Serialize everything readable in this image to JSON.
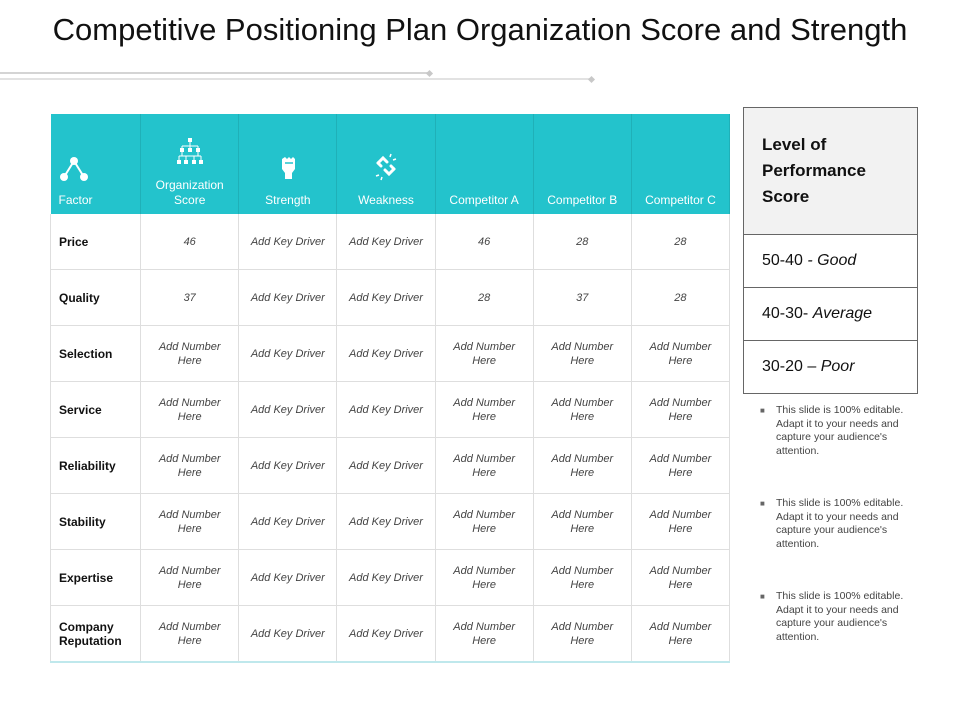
{
  "title": "Competitive Positioning Plan Organization Score and Strength",
  "table": {
    "headers": [
      {
        "label": "Factor",
        "icon": "nodes-icon"
      },
      {
        "label": "Organization Score",
        "icon": "org-chart-icon"
      },
      {
        "label": "Strength",
        "icon": "fist-icon"
      },
      {
        "label": "Weakness",
        "icon": "broken-link-icon"
      },
      {
        "label": "Competitor A",
        "icon": ""
      },
      {
        "label": "Competitor B",
        "icon": ""
      },
      {
        "label": "Competitor C",
        "icon": ""
      }
    ],
    "rows": [
      {
        "factor": "Price",
        "cells": [
          "46",
          "Add Key Driver",
          "Add Key Driver",
          "46",
          "28",
          "28"
        ]
      },
      {
        "factor": "Quality",
        "cells": [
          "37",
          "Add Key Driver",
          "Add Key Driver",
          "28",
          "37",
          "28"
        ]
      },
      {
        "factor": "Selection",
        "cells": [
          "Add Number Here",
          "Add Key Driver",
          "Add Key Driver",
          "Add Number Here",
          "Add Number Here",
          "Add Number Here"
        ]
      },
      {
        "factor": "Service",
        "cells": [
          "Add Number Here",
          "Add Key Driver",
          "Add Key Driver",
          "Add Number Here",
          "Add Number Here",
          "Add Number Here"
        ]
      },
      {
        "factor": "Reliability",
        "cells": [
          "Add Number Here",
          "Add Key Driver",
          "Add Key Driver",
          "Add Number Here",
          "Add Number Here",
          "Add Number Here"
        ]
      },
      {
        "factor": "Stability",
        "cells": [
          "Add Number Here",
          "Add Key Driver",
          "Add Key Driver",
          "Add Number Here",
          "Add Number Here",
          "Add Number Here"
        ]
      },
      {
        "factor": "Expertise",
        "cells": [
          "Add Number Here",
          "Add Key Driver",
          "Add Key Driver",
          "Add Number Here",
          "Add Number Here",
          "Add Number Here"
        ]
      },
      {
        "factor": "Company Reputation",
        "cells": [
          "Add Number Here",
          "Add Key Driver",
          "Add Key Driver",
          "Add Number Here",
          "Add Number Here",
          "Add Number Here"
        ]
      }
    ]
  },
  "performance": {
    "heading": "Level of Performance Score",
    "levels": [
      {
        "range": "50-40 ",
        "label": "- Good"
      },
      {
        "range": "40-30- ",
        "label": "Average"
      },
      {
        "range": "30-20 – ",
        "label": "Poor"
      }
    ]
  },
  "notes": [
    "This slide is 100% editable. Adapt it to your needs and capture your audience's attention.",
    "This slide is 100% editable. Adapt it to your needs and capture your audience's attention.",
    "This slide is 100% editable. Adapt it to your needs and capture your audience's attention."
  ],
  "colors": {
    "header_bg": "#23c3cc",
    "grid": "#dedede"
  }
}
